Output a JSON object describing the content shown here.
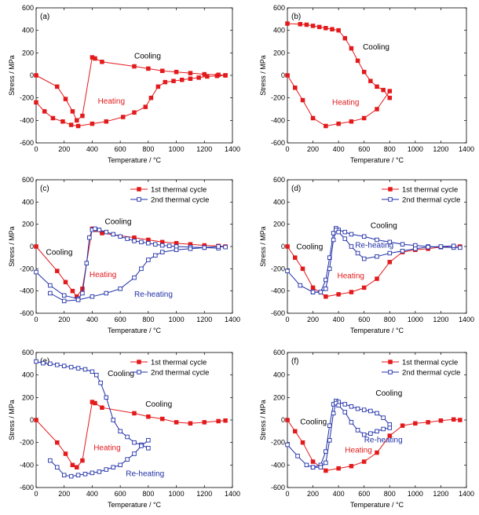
{
  "figure": {
    "panel_labels": [
      "(a)",
      "(b)",
      "(c)",
      "(d)",
      "(e)",
      "(f)"
    ],
    "xlabel": "Temperature / °C",
    "ylabel": "Stress / MPa"
  },
  "colors": {
    "series1": "#e31a1c",
    "series2": "#1f2fa8",
    "black": "#000000"
  },
  "chart_data": [
    {
      "panel": "(a)",
      "type": "line",
      "xlabel": "Temperature / °C",
      "ylabel": "Stress / MPa",
      "xlim": [
        0,
        1400
      ],
      "ylim": [
        -600,
        600
      ],
      "xticks": [
        0,
        200,
        400,
        600,
        800,
        1000,
        1200,
        1400
      ],
      "yticks": [
        -600,
        -400,
        -200,
        0,
        200,
        400,
        600
      ],
      "series": [
        {
          "color": "#e31a1c",
          "marker": "filled-square",
          "x": [
            0,
            150,
            210,
            260,
            290,
            330,
            400,
            420,
            470,
            700,
            800,
            900,
            1000,
            1100,
            1200,
            1300,
            1350
          ],
          "y": [
            0,
            -100,
            -210,
            -320,
            -400,
            -360,
            160,
            150,
            120,
            80,
            60,
            40,
            30,
            20,
            10,
            5,
            0
          ]
        },
        {
          "color": "#e31a1c",
          "marker": "filled-square",
          "x": [
            0,
            60,
            120,
            190,
            250,
            300,
            400,
            500,
            620,
            700,
            780,
            820,
            870,
            920,
            980,
            1040,
            1100,
            1160,
            1220,
            1290,
            1350
          ],
          "y": [
            -240,
            -320,
            -380,
            -410,
            -440,
            -450,
            -430,
            -410,
            -370,
            -330,
            -280,
            -200,
            -100,
            -60,
            -50,
            -40,
            -30,
            -20,
            -10,
            -5,
            0
          ]
        }
      ],
      "annotations": [
        {
          "text": "Cooling",
          "color": "#000000",
          "x": 700,
          "y": 150
        },
        {
          "text": "Heating",
          "color": "#e31a1c",
          "x": 440,
          "y": -250
        }
      ]
    },
    {
      "panel": "(b)",
      "type": "line",
      "xlabel": "Temperature / °C",
      "ylabel": "Stress / MPa",
      "xlim": [
        0,
        1400
      ],
      "ylim": [
        -600,
        600
      ],
      "xticks": [
        0,
        200,
        400,
        600,
        800,
        1000,
        1200,
        1400
      ],
      "yticks": [
        -600,
        -400,
        -200,
        0,
        200,
        400,
        600
      ],
      "series": [
        {
          "color": "#e31a1c",
          "marker": "filled-square",
          "x": [
            0,
            100,
            150,
            200,
            250,
            300,
            350,
            400,
            450,
            500,
            550,
            600,
            650,
            700,
            750,
            800
          ],
          "y": [
            460,
            455,
            450,
            440,
            430,
            420,
            410,
            400,
            330,
            240,
            130,
            30,
            -50,
            -100,
            -130,
            -200
          ]
        },
        {
          "color": "#e31a1c",
          "marker": "filled-square",
          "x": [
            0,
            60,
            120,
            200,
            300,
            400,
            500,
            600,
            700,
            800
          ],
          "y": [
            0,
            -110,
            -220,
            -380,
            -450,
            -430,
            -410,
            -380,
            -300,
            -140
          ]
        }
      ],
      "annotations": [
        {
          "text": "Cooling",
          "color": "#000000",
          "x": 590,
          "y": 230
        },
        {
          "text": "Heating",
          "color": "#e31a1c",
          "x": 350,
          "y": -260
        }
      ]
    },
    {
      "panel": "(c)",
      "type": "line",
      "xlabel": "Temperature / °C",
      "ylabel": "Stress / MPa",
      "xlim": [
        0,
        1400
      ],
      "ylim": [
        -600,
        600
      ],
      "xticks": [
        0,
        200,
        400,
        600,
        800,
        1000,
        1200,
        1400
      ],
      "yticks": [
        -600,
        -400,
        -200,
        0,
        200,
        400,
        600
      ],
      "legend": [
        "1st thermal cycle",
        "2nd thermal cycle"
      ],
      "series": [
        {
          "name": "1st thermal cycle",
          "color": "#e31a1c",
          "marker": "filled-square",
          "x": [
            0,
            150,
            210,
            260,
            290,
            330,
            400,
            420,
            470,
            700,
            800,
            900,
            1000,
            1100,
            1200,
            1300,
            1350
          ],
          "y": [
            0,
            -220,
            -320,
            -400,
            -450,
            -380,
            160,
            150,
            120,
            80,
            60,
            40,
            30,
            20,
            10,
            5,
            0
          ]
        },
        {
          "name": "2nd thermal cycle",
          "color": "#1f2fa8",
          "marker": "open-square",
          "x": [
            0,
            100,
            200,
            300,
            330,
            360,
            380,
            400,
            420,
            450,
            500,
            550,
            600,
            650,
            700,
            750,
            800,
            850,
            900,
            950,
            1000,
            1100,
            1200,
            1300
          ],
          "y": [
            -230,
            -350,
            -440,
            -470,
            -420,
            -150,
            80,
            150,
            160,
            150,
            130,
            110,
            90,
            70,
            50,
            40,
            30,
            20,
            10,
            5,
            0,
            -5,
            -10,
            -15
          ]
        },
        {
          "name": "2nd thermal cycle re-heating",
          "color": "#1f2fa8",
          "marker": "open-square",
          "x": [
            100,
            200,
            300,
            400,
            500,
            600,
            700,
            750,
            800,
            850,
            900,
            1000,
            1100,
            1200,
            1300,
            1350
          ],
          "y": [
            -420,
            -490,
            -480,
            -450,
            -420,
            -380,
            -280,
            -200,
            -120,
            -80,
            -50,
            -30,
            -20,
            -10,
            0,
            -5
          ]
        }
      ],
      "annotations": [
        {
          "text": "Cooling",
          "color": "#000000",
          "x": 490,
          "y": 200
        },
        {
          "text": "Cooling",
          "color": "#000000",
          "x": 70,
          "y": -75
        },
        {
          "text": "Heating",
          "color": "#e31a1c",
          "x": 380,
          "y": -275
        },
        {
          "text": "Re-heating",
          "color": "#1f2fa8",
          "x": 700,
          "y": -450
        }
      ]
    },
    {
      "panel": "(d)",
      "type": "line",
      "xlabel": "Temperature / °C",
      "ylabel": "Stress / MPa",
      "xlim": [
        0,
        1400
      ],
      "ylim": [
        -600,
        600
      ],
      "xticks": [
        0,
        200,
        400,
        600,
        800,
        1000,
        1200,
        1400
      ],
      "yticks": [
        -600,
        -400,
        -200,
        0,
        200,
        400,
        600
      ],
      "legend": [
        "1st thermal cycle",
        "2nd thermal cycle"
      ],
      "series": [
        {
          "name": "1st thermal cycle",
          "color": "#e31a1c",
          "marker": "filled-square",
          "x": [
            0,
            60,
            120,
            200,
            300,
            400,
            500,
            600,
            700,
            800,
            900,
            1000,
            1100,
            1200,
            1300,
            1350
          ],
          "y": [
            0,
            -100,
            -200,
            -370,
            -450,
            -430,
            -410,
            -370,
            -290,
            -140,
            -50,
            -30,
            -20,
            -5,
            5,
            0
          ]
        },
        {
          "name": "2nd thermal cycle",
          "color": "#1f2fa8",
          "marker": "open-square",
          "x": [
            0,
            100,
            200,
            260,
            300,
            330,
            360,
            380,
            400,
            450,
            500,
            600,
            700,
            800,
            900,
            1000,
            1100,
            1200,
            1300,
            1350
          ],
          "y": [
            -220,
            -350,
            -410,
            -410,
            -300,
            -100,
            120,
            165,
            150,
            130,
            110,
            90,
            60,
            40,
            20,
            10,
            0,
            -5,
            -10,
            -10
          ]
        },
        {
          "name": "2nd thermal cycle re-heating",
          "color": "#1f2fa8",
          "marker": "open-square",
          "x": [
            200,
            260,
            300,
            330,
            360,
            380,
            400,
            450,
            500,
            550,
            600,
            700,
            800,
            900,
            1000,
            1100,
            1200,
            1300
          ],
          "y": [
            -410,
            -410,
            -380,
            -200,
            60,
            150,
            130,
            70,
            0,
            -60,
            -110,
            -90,
            -60,
            -40,
            -20,
            -5,
            0,
            5
          ]
        }
      ],
      "annotations": [
        {
          "text": "Cooling",
          "color": "#000000",
          "x": 650,
          "y": 165
        },
        {
          "text": "Cooling",
          "color": "#000000",
          "x": 70,
          "y": -25
        },
        {
          "text": "Re-heating",
          "color": "#1f2fa8",
          "x": 530,
          "y": -10
        },
        {
          "text": "Heating",
          "color": "#e31a1c",
          "x": 390,
          "y": -285
        }
      ]
    },
    {
      "panel": "(e)",
      "type": "line",
      "xlabel": "Temperature / °C",
      "ylabel": "Stress / MPa",
      "xlim": [
        0,
        1400
      ],
      "ylim": [
        -600,
        600
      ],
      "xticks": [
        0,
        200,
        400,
        600,
        800,
        1000,
        1200,
        1400
      ],
      "yticks": [
        -600,
        -400,
        -200,
        0,
        200,
        400,
        600
      ],
      "legend": [
        "1st thermal cycle",
        "2nd thermal cycle"
      ],
      "series": [
        {
          "name": "1st thermal cycle",
          "color": "#e31a1c",
          "marker": "filled-square",
          "x": [
            0,
            150,
            210,
            260,
            290,
            330,
            400,
            420,
            470,
            700,
            800,
            900,
            1000,
            1100,
            1200,
            1300,
            1350
          ],
          "y": [
            0,
            -200,
            -300,
            -400,
            -420,
            -360,
            160,
            150,
            110,
            60,
            30,
            10,
            -20,
            -30,
            -20,
            -10,
            -5
          ]
        },
        {
          "name": "2nd thermal cycle",
          "color": "#1f2fa8",
          "marker": "open-square",
          "x": [
            0,
            50,
            100,
            150,
            200,
            250,
            300,
            350,
            400,
            430,
            460,
            500,
            550,
            600,
            650,
            700,
            750,
            800
          ],
          "y": [
            520,
            505,
            500,
            490,
            480,
            470,
            460,
            450,
            430,
            400,
            330,
            200,
            0,
            -100,
            -150,
            -200,
            -220,
            -250
          ]
        },
        {
          "name": "2nd thermal cycle re-heating",
          "color": "#1f2fa8",
          "marker": "open-square",
          "x": [
            100,
            150,
            200,
            250,
            300,
            350,
            400,
            450,
            500,
            550,
            600,
            650,
            700,
            750,
            800
          ],
          "y": [
            -360,
            -420,
            -490,
            -500,
            -490,
            -480,
            -470,
            -460,
            -440,
            -420,
            -400,
            -350,
            -300,
            -230,
            -180
          ]
        }
      ],
      "annotations": [
        {
          "text": "Cooling",
          "color": "#000000",
          "x": 510,
          "y": 390
        },
        {
          "text": "Cooling",
          "color": "#000000",
          "x": 780,
          "y": 120
        },
        {
          "text": "Heating",
          "color": "#e31a1c",
          "x": 410,
          "y": -270
        },
        {
          "text": "Re-heating",
          "color": "#1f2fa8",
          "x": 640,
          "y": -500
        }
      ]
    },
    {
      "panel": "(f)",
      "type": "line",
      "xlabel": "Temperature / °C",
      "ylabel": "Stress / MPa",
      "xlim": [
        0,
        1400
      ],
      "ylim": [
        -600,
        600
      ],
      "xticks": [
        0,
        200,
        400,
        600,
        800,
        1000,
        1200,
        1400
      ],
      "yticks": [
        -600,
        -400,
        -200,
        0,
        200,
        400,
        600
      ],
      "legend": [
        "1st thermal cycle",
        "2nd thermal cycle"
      ],
      "series": [
        {
          "name": "1st thermal cycle",
          "color": "#e31a1c",
          "marker": "filled-square",
          "x": [
            0,
            60,
            120,
            200,
            300,
            400,
            500,
            600,
            700,
            800,
            900,
            1000,
            1100,
            1200,
            1300,
            1350
          ],
          "y": [
            0,
            -100,
            -200,
            -370,
            -450,
            -430,
            -410,
            -370,
            -290,
            -140,
            -50,
            -30,
            -20,
            -5,
            5,
            0
          ]
        },
        {
          "name": "2nd thermal cycle",
          "color": "#1f2fa8",
          "marker": "open-square",
          "x": [
            0,
            80,
            150,
            200,
            260,
            300,
            330,
            360,
            380,
            400,
            450,
            500,
            550,
            600,
            650,
            700,
            750,
            800
          ],
          "y": [
            -220,
            -320,
            -400,
            -420,
            -400,
            -280,
            -50,
            140,
            170,
            160,
            140,
            120,
            100,
            90,
            80,
            60,
            20,
            -40
          ]
        },
        {
          "name": "2nd thermal cycle re-heating",
          "color": "#1f2fa8",
          "marker": "open-square",
          "x": [
            200,
            260,
            300,
            330,
            360,
            380,
            400,
            450,
            500,
            550,
            600,
            650,
            700,
            750,
            800
          ],
          "y": [
            -420,
            -420,
            -380,
            -180,
            60,
            150,
            130,
            70,
            -20,
            -90,
            -130,
            -120,
            -100,
            -80,
            -70
          ]
        }
      ],
      "annotations": [
        {
          "text": "Cooling",
          "color": "#000000",
          "x": 690,
          "y": 215
        },
        {
          "text": "Cooling",
          "color": "#000000",
          "x": 100,
          "y": -40
        },
        {
          "text": "Re-heating",
          "color": "#1f2fa8",
          "x": 600,
          "y": -200
        },
        {
          "text": "Heating",
          "color": "#e31a1c",
          "x": 450,
          "y": -290
        }
      ]
    }
  ]
}
